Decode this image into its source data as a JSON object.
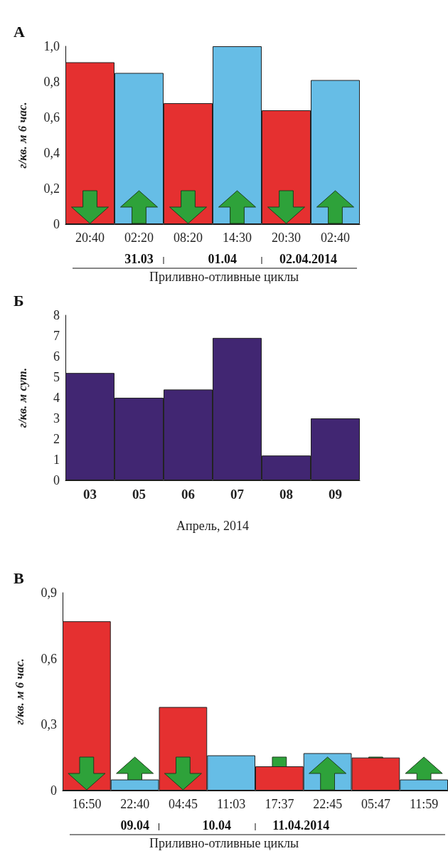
{
  "chart_data": [
    {
      "type": "bar",
      "title": "А",
      "ylabel": "г/кв. м 6 час.",
      "xlabel": "Приливно-отливные циклы",
      "categories": [
        "20:40",
        "02:20",
        "08:20",
        "14:30",
        "20:30",
        "02:40"
      ],
      "values": [
        0.91,
        0.85,
        0.68,
        1.0,
        0.64,
        0.81
      ],
      "colors": [
        "#e53030",
        "#66bde6",
        "#e53030",
        "#66bde6",
        "#e53030",
        "#66bde6"
      ],
      "ylim": [
        0,
        1
      ],
      "yticks": [
        0,
        {
          "value": 0.2,
          "label": "0,2"
        },
        {
          "value": 0.4,
          "label": "0,4"
        },
        {
          "value": 0.6,
          "label": "0,6"
        },
        {
          "value": 0.8,
          "label": "0,8"
        },
        {
          "value": 1,
          "label": "1,0"
        }
      ],
      "grid": false,
      "annotations": [
        "31.03",
        "01.04",
        "02.04.2014"
      ]
    },
    {
      "type": "bar",
      "title": "Б",
      "ylabel": "г/кв. м сут.",
      "xlabel": "Апрель, 2014",
      "categories": [
        "03",
        "05",
        "06",
        "07",
        "08",
        "09"
      ],
      "values": [
        5.2,
        4.0,
        4.4,
        6.9,
        1.2,
        3.0
      ],
      "color": "#412672",
      "ylim": [
        0,
        8
      ],
      "yticks": [
        0,
        1,
        2,
        3,
        4,
        5,
        6,
        7,
        8
      ],
      "grid": false
    },
    {
      "type": "bar",
      "title": "В",
      "ylabel": "г/кв. м 6 час.",
      "xlabel": "Приливно-отливные циклы",
      "categories": [
        "16:50",
        "22:40",
        "04:45",
        "11:03",
        "17:37",
        "22:45",
        "05:47",
        "11:59"
      ],
      "values": [
        0.77,
        0.05,
        0.38,
        0.16,
        0.11,
        0.17,
        0.15,
        0.05
      ],
      "colors": [
        "#e53030",
        "#66bde6",
        "#e53030",
        "#66bde6",
        "#e53030",
        "#66bde6",
        "#e53030",
        "#66bde6"
      ],
      "ylim": [
        0,
        0.9
      ],
      "yticks": [
        0,
        {
          "value": 0.3,
          "label": "0,3"
        },
        {
          "value": 0.6,
          "label": "0,6"
        },
        {
          "value": 0.9,
          "label": "0,9"
        }
      ],
      "grid": false,
      "annotations": [
        "09.04",
        "10.04",
        "11.04.2014"
      ]
    }
  ]
}
